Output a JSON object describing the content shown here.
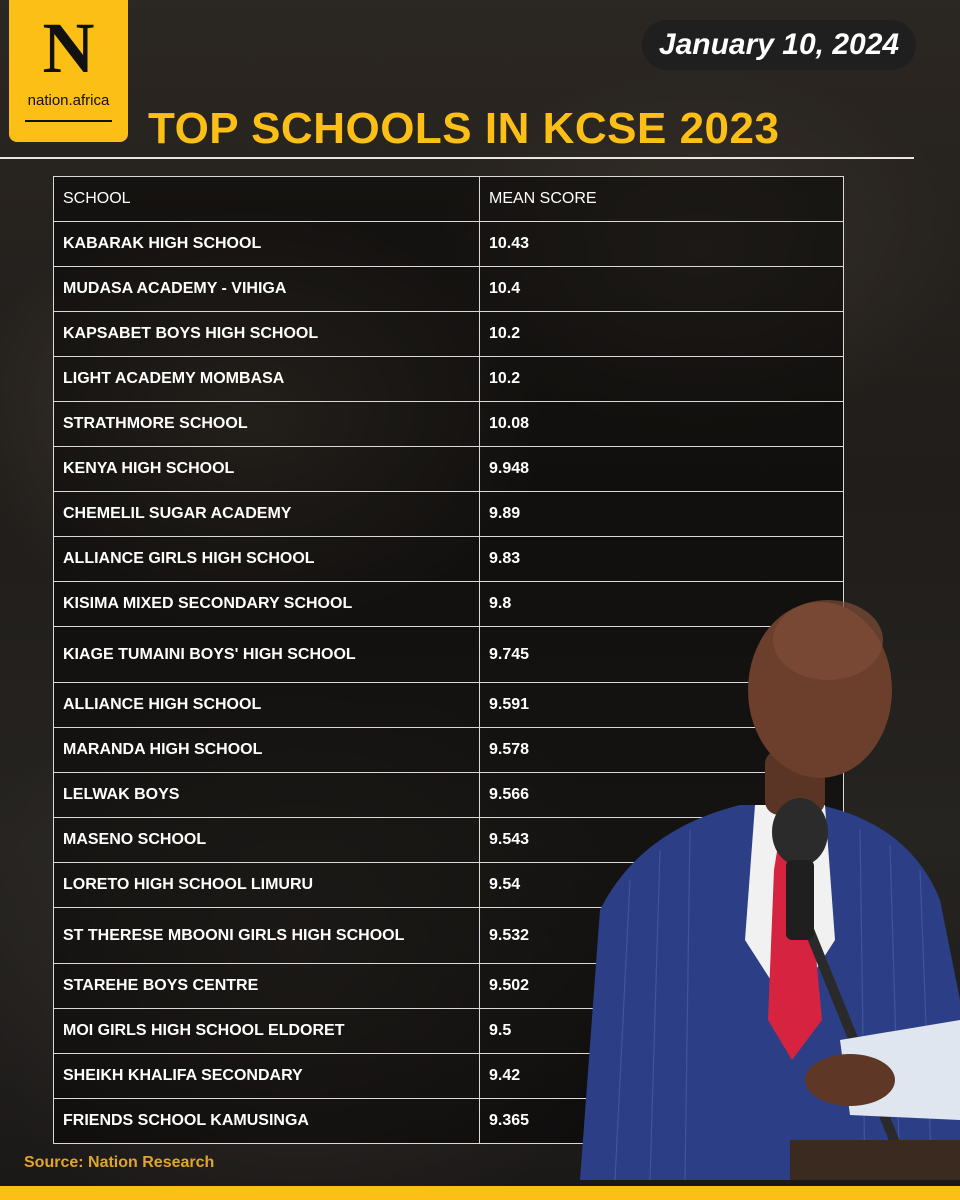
{
  "brand": {
    "logo_letter": "N",
    "logo_text": "nation.africa",
    "accent_color": "#fbbf16"
  },
  "date": "January 10, 2024",
  "title": "TOP SCHOOLS IN KCSE 2023",
  "source": "Source: Nation Research",
  "chart_data": {
    "type": "table",
    "title": "TOP SCHOOLS IN KCSE 2023",
    "columns": [
      "SCHOOL",
      "MEAN SCORE"
    ],
    "rows": [
      [
        "KABARAK HIGH SCHOOL",
        "10.43"
      ],
      [
        "MUDASA ACADEMY - VIHIGA",
        "10.4"
      ],
      [
        "KAPSABET BOYS HIGH SCHOOL",
        "10.2"
      ],
      [
        "LIGHT ACADEMY MOMBASA",
        "10.2"
      ],
      [
        "STRATHMORE SCHOOL",
        "10.08"
      ],
      [
        "KENYA HIGH SCHOOL",
        "9.948"
      ],
      [
        "CHEMELIL SUGAR ACADEMY",
        "9.89"
      ],
      [
        "ALLIANCE GIRLS HIGH SCHOOL",
        "9.83"
      ],
      [
        "KISIMA MIXED SECONDARY SCHOOL",
        "9.8"
      ],
      [
        "KIAGE TUMAINI BOYS' HIGH SCHOOL",
        "9.745"
      ],
      [
        "ALLIANCE HIGH SCHOOL",
        "9.591"
      ],
      [
        "MARANDA HIGH SCHOOL",
        "9.578"
      ],
      [
        "LELWAK BOYS",
        "9.566"
      ],
      [
        "MASENO SCHOOL",
        "9.543"
      ],
      [
        "LORETO HIGH SCHOOL LIMURU",
        "9.54"
      ],
      [
        "ST THERESE MBOONI GIRLS HIGH SCHOOL",
        "9.532"
      ],
      [
        "STAREHE BOYS CENTRE",
        "9.502"
      ],
      [
        "MOI GIRLS HIGH SCHOOL ELDORET",
        "9.5"
      ],
      [
        "SHEIKH KHALIFA SECONDARY",
        "9.42"
      ],
      [
        "FRIENDS SCHOOL KAMUSINGA",
        "9.365"
      ]
    ]
  }
}
